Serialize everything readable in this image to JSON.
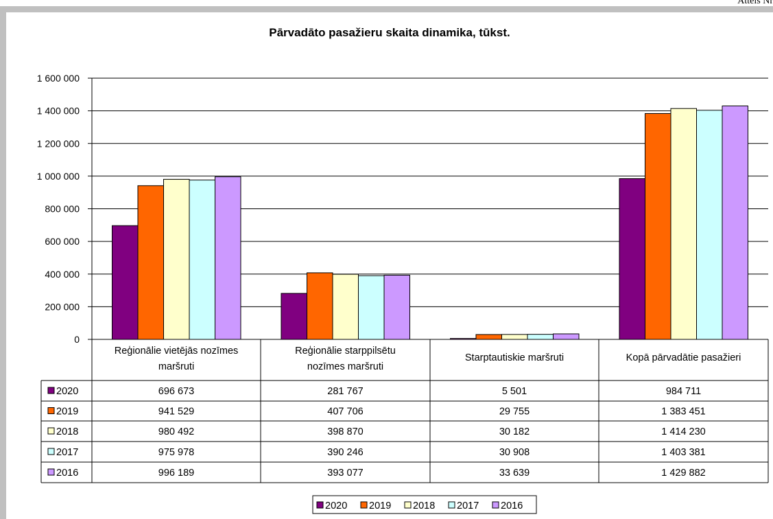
{
  "page": {
    "corner_label": "Attēls Nr"
  },
  "chart_data": {
    "type": "bar",
    "title": "Pārvadāto pasažieru skaita dinamika, tūkst.",
    "xlabel": "",
    "ylabel": "",
    "ylim": [
      0,
      1600000
    ],
    "yticks": [
      {
        "value": 0,
        "label": "0"
      },
      {
        "value": 200000,
        "label": "200 000"
      },
      {
        "value": 400000,
        "label": "400 000"
      },
      {
        "value": 600000,
        "label": "600 000"
      },
      {
        "value": 800000,
        "label": "800 000"
      },
      {
        "value": 1000000,
        "label": "1 000 000"
      },
      {
        "value": 1200000,
        "label": "1 200 000"
      },
      {
        "value": 1400000,
        "label": "1 400 000"
      },
      {
        "value": 1600000,
        "label": "1 600 000"
      }
    ],
    "grid": true,
    "legend_position": "bottom",
    "categories": [
      [
        "Reģionālie vietējās nozīmes",
        "maršruti"
      ],
      [
        "Reģionālie starppilsētu",
        "nozīmes maršruti"
      ],
      [
        "Starptautiskie maršruti"
      ],
      [
        "Kopā pārvadātie pasažieri"
      ]
    ],
    "series": [
      {
        "name": "2020",
        "color": "#800080",
        "values": [
          696673,
          281767,
          5501,
          984711
        ],
        "labels": [
          "696 673",
          "281 767",
          "5 501",
          "984 711"
        ]
      },
      {
        "name": "2019",
        "color": "#ff6600",
        "values": [
          941529,
          407706,
          29755,
          1383451
        ],
        "labels": [
          "941 529",
          "407 706",
          "29 755",
          "1 383 451"
        ]
      },
      {
        "name": "2018",
        "color": "#ffffcc",
        "values": [
          980492,
          398870,
          30182,
          1414230
        ],
        "labels": [
          "980 492",
          "398 870",
          "30 182",
          "1 414 230"
        ]
      },
      {
        "name": "2017",
        "color": "#ccffff",
        "values": [
          975978,
          390246,
          30908,
          1403381
        ],
        "labels": [
          "975 978",
          "390 246",
          "30 908",
          "1 403 381"
        ]
      },
      {
        "name": "2016",
        "color": "#cc99ff",
        "values": [
          996189,
          393077,
          33639,
          1429882
        ],
        "labels": [
          "996 189",
          "393 077",
          "33 639",
          "1 429 882"
        ]
      }
    ]
  }
}
